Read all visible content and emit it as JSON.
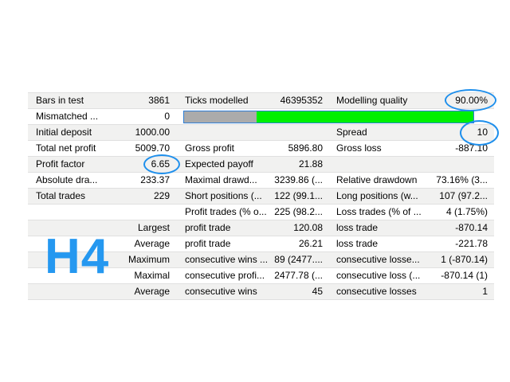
{
  "watermark": "H4",
  "colors": {
    "accent_blue": "#2598f0",
    "annotation_blue": "#1e8fec",
    "bar_border": "#2e7ed6",
    "bar_gray": "#ababab",
    "bar_green": "#00f000",
    "row_shade": "#f1f1f0"
  },
  "modelling_bar": {
    "gray_pct": "25.2",
    "green_pct": "74.8",
    "gray_style": "width:25.2%"
  },
  "annotations": {
    "circled_values": [
      "90.00%",
      "10",
      "6.65"
    ]
  },
  "table": {
    "rows": [
      {
        "cells": [
          "Bars in test",
          "3861",
          "Ticks modelled",
          "46395352",
          "Modelling quality",
          "90.00%"
        ]
      },
      {
        "cells": [
          "Mismatched ...",
          "0",
          "",
          "",
          "",
          ""
        ]
      },
      {
        "cells": [
          "Initial deposit",
          "1000.00",
          "",
          "",
          "Spread",
          "10"
        ]
      },
      {
        "cells": [
          "Total net profit",
          "5009.70",
          "Gross profit",
          "5896.80",
          "Gross loss",
          "-887.10"
        ]
      },
      {
        "cells": [
          "Profit factor",
          "6.65",
          "Expected payoff",
          "21.88",
          "",
          ""
        ]
      },
      {
        "cells": [
          "Absolute dra...",
          "233.37",
          "Maximal drawd...",
          "3239.86 (...",
          "Relative drawdown",
          "73.16% (3..."
        ]
      },
      {
        "cells": [
          "Total trades",
          "229",
          "Short positions (...",
          "122 (99.1...",
          "Long positions (w...",
          "107 (97.2..."
        ]
      },
      {
        "cells": [
          "",
          "",
          "Profit trades (% o...",
          "225 (98.2...",
          "Loss trades (% of ...",
          "4 (1.75%)"
        ]
      },
      {
        "cells": [
          "",
          "Largest",
          "profit trade",
          "120.08",
          "loss trade",
          "-870.14"
        ]
      },
      {
        "cells": [
          "",
          "Average",
          "profit trade",
          "26.21",
          "loss trade",
          "-221.78"
        ]
      },
      {
        "cells": [
          "",
          "Maximum",
          "consecutive wins ...",
          "89 (2477....",
          "consecutive losse...",
          "1 (-870.14)"
        ]
      },
      {
        "cells": [
          "",
          "Maximal",
          "consecutive profi...",
          "2477.78 (...",
          "consecutive loss (...",
          "-870.14 (1)"
        ]
      },
      {
        "cells": [
          "",
          "Average",
          "consecutive wins",
          "45",
          "consecutive losses",
          "1"
        ]
      }
    ]
  }
}
